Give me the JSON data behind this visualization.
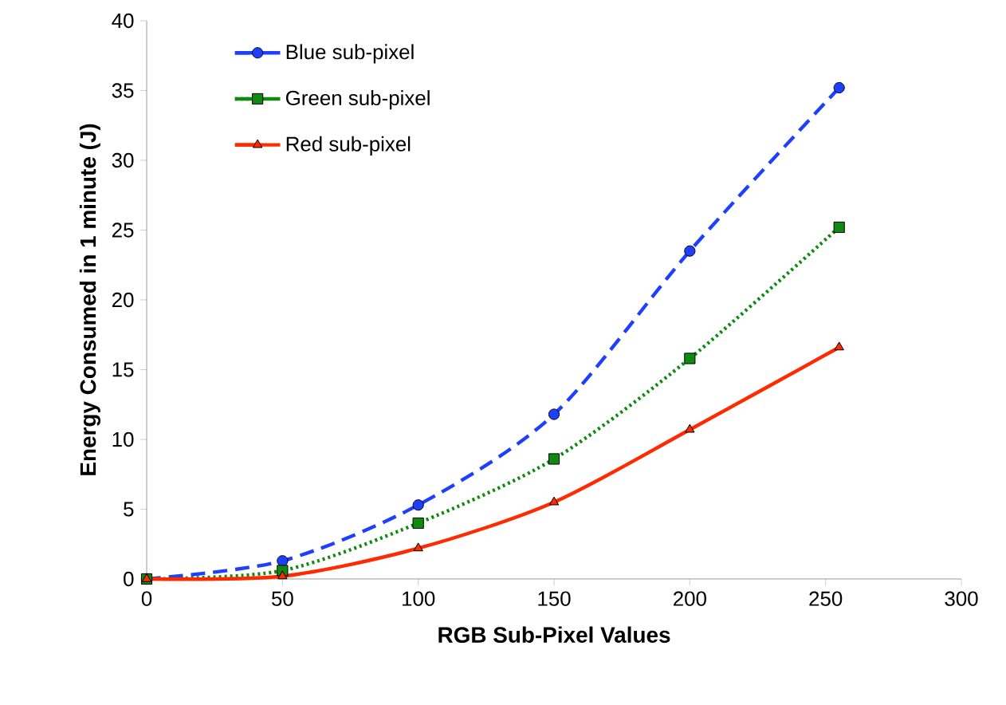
{
  "chart_data": {
    "type": "line",
    "xlabel": "RGB Sub-Pixel Values",
    "ylabel": "Energy Consumed in 1 minute (J)",
    "x": [
      0,
      50,
      100,
      150,
      200,
      255
    ],
    "series": [
      {
        "name": "Blue sub-pixel",
        "color": "#1f3fff",
        "marker": "circle",
        "line_style": "dashed",
        "values": [
          0,
          1.3,
          5.3,
          11.8,
          23.5,
          35.2
        ]
      },
      {
        "name": "Green sub-pixel",
        "color": "#0f8a0f",
        "marker": "square",
        "line_style": "dotted",
        "values": [
          0,
          0.6,
          4.0,
          8.6,
          15.8,
          25.2
        ]
      },
      {
        "name": "Red sub-pixel",
        "color": "#ff2a00",
        "marker": "triangle",
        "line_style": "solid",
        "values": [
          0,
          0.2,
          2.2,
          5.5,
          10.7,
          16.6
        ]
      }
    ],
    "xlim": [
      0,
      300
    ],
    "ylim": [
      0,
      40
    ],
    "xticks": [
      0,
      50,
      100,
      150,
      200,
      250,
      300
    ],
    "yticks": [
      0,
      5,
      10,
      15,
      20,
      25,
      30,
      35,
      40
    ],
    "legend": "top left",
    "grid": false
  }
}
